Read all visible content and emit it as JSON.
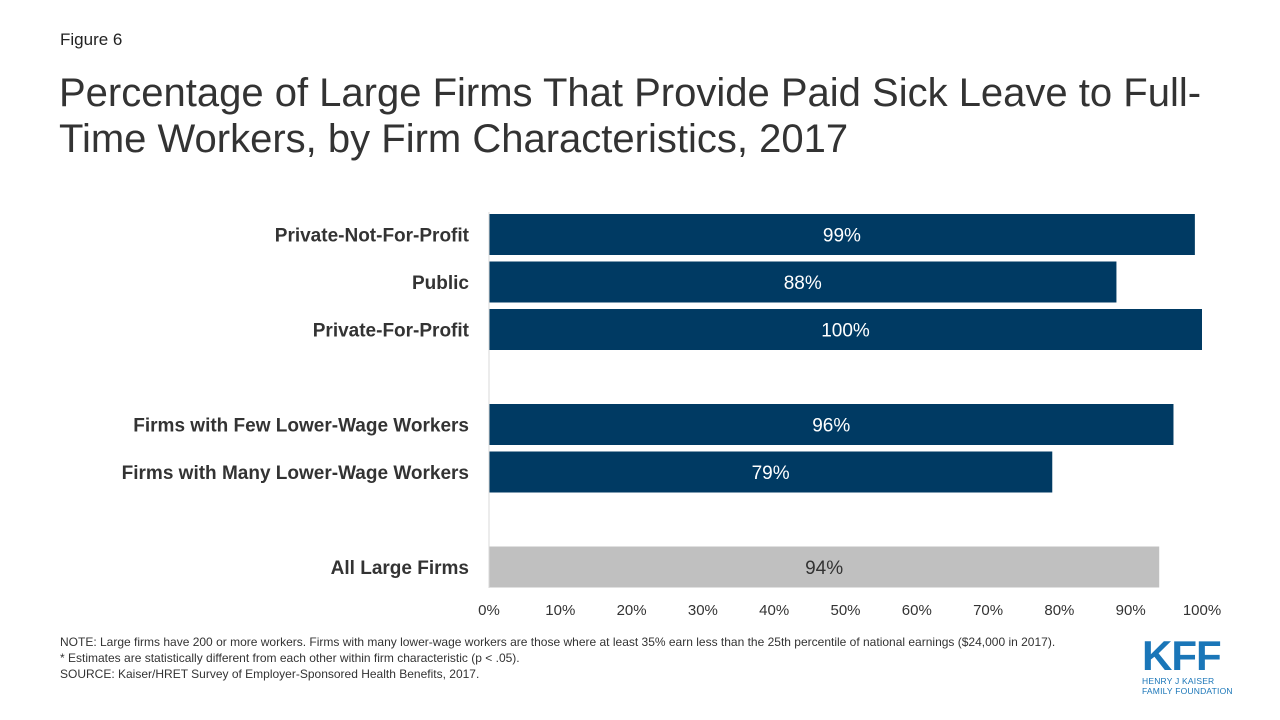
{
  "figure_label": "Figure 6",
  "title": "Percentage of Large Firms That Provide Paid Sick Leave to Full-Time Workers, by Firm Characteristics, 2017",
  "colors": {
    "bar_primary": "#003a63",
    "bar_total": "#c0c0c0",
    "label_on_primary": "#ffffff",
    "label_on_total": "#333333",
    "logo": "#1a76b8"
  },
  "chart_data": {
    "type": "bar",
    "orientation": "horizontal",
    "categories": [
      "Private-Not-For-Profit",
      "Public",
      "Private-For-Profit",
      "Firms with Few Lower-Wage Workers",
      "Firms with Many Lower-Wage Workers",
      "All Large Firms"
    ],
    "values": [
      99,
      88,
      100,
      96,
      79,
      94
    ],
    "value_labels": [
      "99%",
      "88%",
      "100%",
      "96%",
      "79%",
      "94%"
    ],
    "groups": [
      0,
      0,
      0,
      1,
      1,
      2
    ],
    "highlight": [
      false,
      false,
      false,
      false,
      false,
      true
    ],
    "xlim": [
      0,
      100
    ],
    "xticks": [
      "0%",
      "10%",
      "20%",
      "30%",
      "40%",
      "50%",
      "60%",
      "70%",
      "80%",
      "90%",
      "100%"
    ],
    "grid": false,
    "legend": "none"
  },
  "notes": {
    "note": "NOTE: Large firms have 200 or more workers. Firms with many lower-wage workers are those where at least 35% earn less than the 25th percentile of national earnings ($24,000 in 2017).",
    "asterisk": "* Estimates are statistically different from each other within firm characteristic (p < .05).",
    "source": "SOURCE: Kaiser/HRET Survey of Employer-Sponsored Health Benefits, 2017."
  },
  "logo": {
    "letters": "KFF",
    "line1": "HENRY J KAISER",
    "line2": "FAMILY FOUNDATION"
  }
}
